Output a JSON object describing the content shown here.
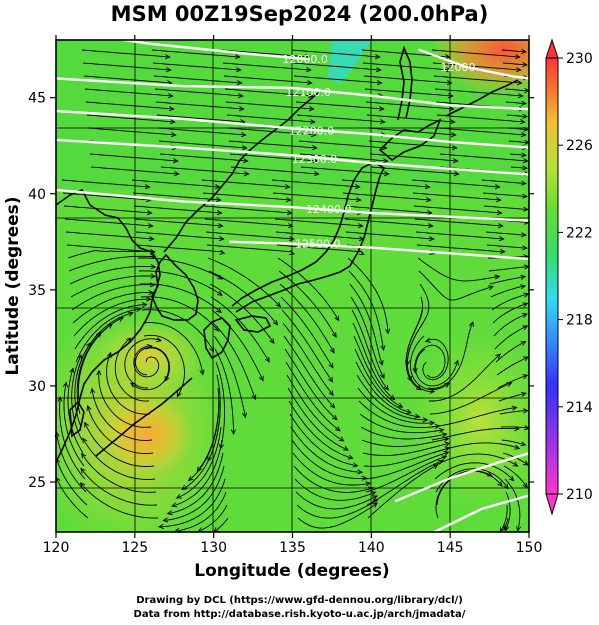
{
  "title": "MSM 00Z19Sep2024 (200.0hPa)",
  "chart_data": {
    "type": "map",
    "xlabel": "Longitude (degrees)",
    "ylabel": "Latitude  (degrees)",
    "xlim": [
      120,
      150
    ],
    "ylim": [
      22.4,
      48
    ],
    "xticks": [
      "120",
      "125",
      "130",
      "135",
      "140",
      "145",
      "150"
    ],
    "yticks": [
      "25",
      "30",
      "35",
      "40",
      "45"
    ],
    "colorbar": {
      "ticks": [
        "230",
        "226",
        "222",
        "218",
        "214",
        "210"
      ],
      "min": 210,
      "max": 230
    },
    "contour_labels": [
      "12000.0",
      "12100.0",
      "12200.0",
      "12300.0",
      "12400.0",
      "12500.0",
      "12000"
    ],
    "contours": [
      {
        "label": "12000.0",
        "points": [
          [
            120,
            48.5
          ],
          [
            126,
            47.8
          ],
          [
            132,
            47.3
          ],
          [
            136,
            47.0
          ]
        ]
      },
      {
        "label": "12000",
        "points": [
          [
            143,
            47.5
          ],
          [
            146,
            46.6
          ],
          [
            149,
            46.1
          ],
          [
            150,
            46.0
          ]
        ]
      },
      {
        "label": "12100.0",
        "points": [
          [
            120,
            46.0
          ],
          [
            128,
            45.6
          ],
          [
            135,
            45.5
          ],
          [
            140,
            45.1
          ],
          [
            145,
            44.6
          ],
          [
            150,
            44.4
          ]
        ]
      },
      {
        "label": "12200.0",
        "points": [
          [
            120,
            44.3
          ],
          [
            128,
            43.9
          ],
          [
            135,
            43.4
          ],
          [
            140,
            43.1
          ],
          [
            145,
            42.7
          ],
          [
            150,
            42.4
          ]
        ]
      },
      {
        "label": "12300.0",
        "points": [
          [
            120,
            42.8
          ],
          [
            128,
            42.4
          ],
          [
            135,
            42.0
          ],
          [
            140,
            41.6
          ],
          [
            145,
            41.3
          ],
          [
            150,
            41.0
          ]
        ]
      },
      {
        "label": "12400.0",
        "points": [
          [
            120,
            40.2
          ],
          [
            128,
            39.6
          ],
          [
            135,
            39.3
          ],
          [
            140,
            39.0
          ],
          [
            145,
            38.8
          ],
          [
            150,
            38.6
          ]
        ]
      },
      {
        "label": "12500.0",
        "points": [
          [
            131,
            37.5
          ],
          [
            135,
            37.4
          ],
          [
            140,
            37.2
          ],
          [
            145,
            36.9
          ],
          [
            150,
            36.6
          ]
        ]
      },
      {
        "label": "",
        "points": [
          [
            141.5,
            24.0
          ],
          [
            145,
            25.2
          ],
          [
            148,
            26.0
          ],
          [
            150,
            26.5
          ]
        ]
      },
      {
        "label": "",
        "points": [
          [
            144,
            22.4
          ],
          [
            147,
            23.6
          ],
          [
            150,
            24.3
          ]
        ]
      }
    ],
    "contour_label_positions": [
      [
        135.8,
        47.0
      ],
      [
        136.0,
        45.3
      ],
      [
        136.2,
        43.3
      ],
      [
        136.4,
        41.8
      ],
      [
        137.3,
        39.2
      ],
      [
        136.6,
        37.4
      ],
      [
        145.5,
        46.6
      ]
    ]
  },
  "credit_lines": [
    "Drawing by DCL (https://www.gfd-dennou.org/library/dcl/)",
    "Data from http://database.rish.kyoto-u.ac.jp/arch/jmadata/"
  ],
  "colors": {
    "frame": "#000000",
    "contour": "#ffffff",
    "stream": "#000000"
  }
}
